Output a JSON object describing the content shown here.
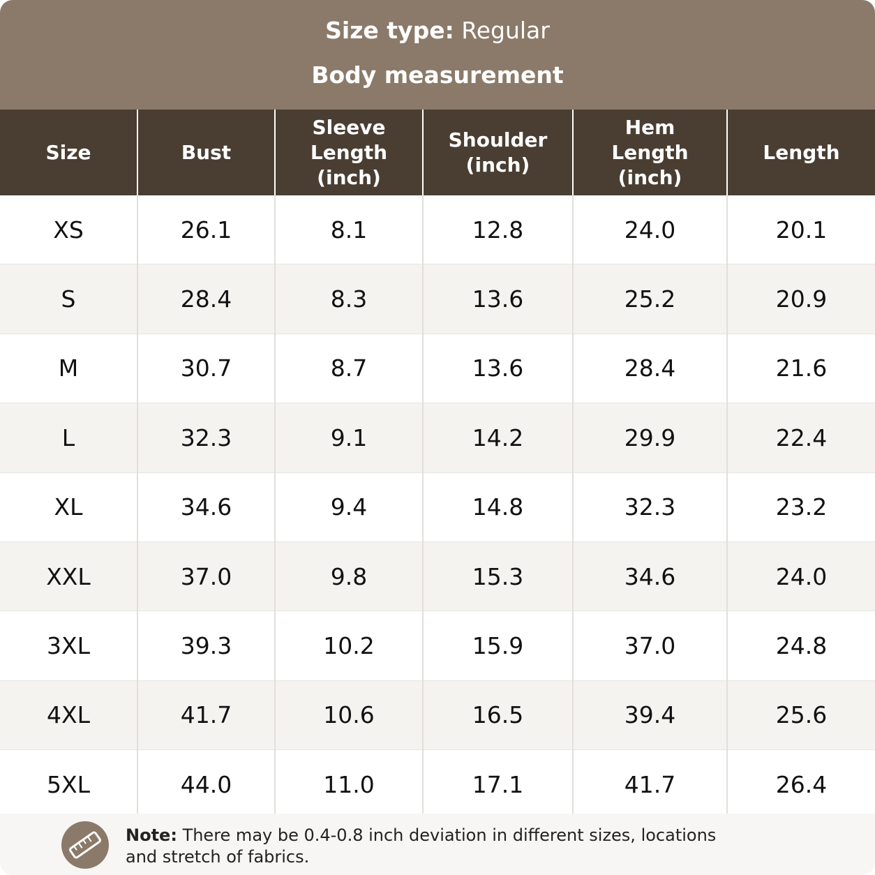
{
  "header": {
    "size_type_label": "Size type:",
    "size_type_value": "Regular",
    "subtitle": "Body measurement"
  },
  "table": {
    "columns": [
      "Size",
      "Bust",
      "Sleeve Length (inch)",
      "Shoulder (inch)",
      "Hem Length (inch)",
      "Length"
    ],
    "rows": [
      [
        "XS",
        "26.1",
        "8.1",
        "12.8",
        "24.0",
        "20.1"
      ],
      [
        "S",
        "28.4",
        "8.3",
        "13.6",
        "25.2",
        "20.9"
      ],
      [
        "M",
        "30.7",
        "8.7",
        "13.6",
        "28.4",
        "21.6"
      ],
      [
        "L",
        "32.3",
        "9.1",
        "14.2",
        "29.9",
        "22.4"
      ],
      [
        "XL",
        "34.6",
        "9.4",
        "14.8",
        "32.3",
        "23.2"
      ],
      [
        "XXL",
        "37.0",
        "9.8",
        "15.3",
        "34.6",
        "24.0"
      ],
      [
        "3XL",
        "39.3",
        "10.2",
        "15.9",
        "37.0",
        "24.8"
      ],
      [
        "4XL",
        "41.7",
        "10.6",
        "16.5",
        "39.4",
        "25.6"
      ],
      [
        "5XL",
        "44.0",
        "11.0",
        "17.1",
        "41.7",
        "26.4"
      ]
    ]
  },
  "note": {
    "label": "Note:",
    "text": "There may be 0.4-0.8 inch deviation in different sizes, locations and stretch of fabrics."
  }
}
